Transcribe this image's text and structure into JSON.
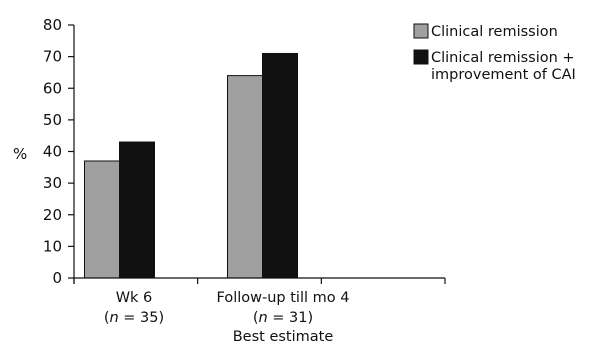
{
  "chart_data": {
    "type": "bar",
    "ylabel": "%",
    "ylim": [
      0,
      80
    ],
    "yticks": [
      0,
      10,
      20,
      30,
      40,
      50,
      60,
      70,
      80
    ],
    "grid": false,
    "legend_position": "top-right",
    "categories": [
      {
        "line1": "Wk 6",
        "line2_prefix": "(",
        "n_symbol": "n",
        "line2_suffix": " = 35)",
        "line3": ""
      },
      {
        "line1": "Follow-up till mo 4",
        "line2_prefix": "(",
        "n_symbol": "n",
        "line2_suffix": " = 31)",
        "line3": "Best estimate"
      }
    ],
    "series": [
      {
        "name": "Clinical remission",
        "name_line2": "",
        "color": "#a0a0a0",
        "values": [
          37,
          64
        ]
      },
      {
        "name": "Clinical remission +",
        "name_line2": "improvement of CAI",
        "color": "#111111",
        "values": [
          43,
          71
        ]
      }
    ]
  }
}
